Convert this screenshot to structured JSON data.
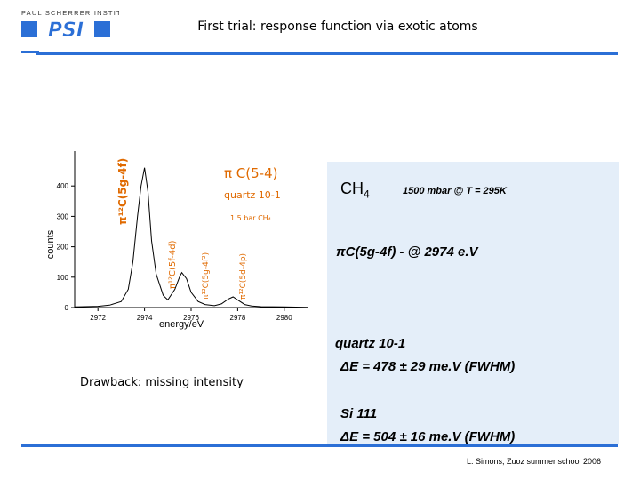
{
  "header": {
    "logo_line": "PAUL SCHERRER INSTITUT",
    "logo_mark": "PSI",
    "title": "First trial: response function via exotic atoms"
  },
  "colors": {
    "accent": "#2b6fd6",
    "panel": "#e4eef9",
    "label_orange": "#e06a00"
  },
  "chart_data": {
    "type": "line",
    "xlabel": "energy/eV",
    "ylabel": "counts",
    "xlim": [
      2971,
      2981
    ],
    "ylim": [
      0,
      500
    ],
    "x_ticks": [
      "2972",
      "2974",
      "2976",
      "2978",
      "2980"
    ],
    "y_ticks": [
      "0",
      "100",
      "200",
      "300",
      "400"
    ],
    "series": [
      {
        "x": [
          2971.0,
          2972.0,
          2972.5,
          2973.0,
          2973.3,
          2973.5,
          2973.7,
          2973.85,
          2974.0,
          2974.15,
          2974.3,
          2974.5,
          2974.8,
          2975.0,
          2975.3,
          2975.5,
          2975.6,
          2975.8,
          2976.0,
          2976.3,
          2976.6,
          2977.0,
          2977.3,
          2977.6,
          2977.8,
          2978.0,
          2978.3,
          2978.6,
          2979.0,
          2980.0,
          2981.0
        ],
        "y": [
          2,
          4,
          8,
          20,
          60,
          150,
          300,
          400,
          460,
          380,
          220,
          110,
          40,
          25,
          60,
          100,
          115,
          95,
          50,
          20,
          10,
          6,
          12,
          28,
          35,
          25,
          10,
          5,
          3,
          2,
          1
        ]
      }
    ],
    "annotations": [
      {
        "text": "π¹²C(5g-4f)"
      },
      {
        "text": "π¹²C(5f-4d)"
      },
      {
        "text": "π¹²C(5g-4f²)"
      },
      {
        "text": "π¹²C(5d-4p)"
      }
    ],
    "legend": {
      "line1": "π C(5-4)",
      "line2": "quartz 10-1",
      "line3": "1.5 bar CH₄"
    }
  },
  "info": {
    "ch4_main": "CH",
    "ch4_sub": "4",
    "conditions": "1500 mbar @ T = 295K",
    "transition": "πC(5g-4f) - @ 2974 e.V",
    "quartz_label": "quartz 10-1",
    "quartz_res": "ΔE = 478 ± 29 me.V (FWHM)",
    "si_label": "Si 111",
    "si_res": "ΔE = 504 ± 16 me.V (FWHM)"
  },
  "drawback": "Drawback: missing intensity",
  "credit": "L. Simons,  Zuoz summer school 2006"
}
